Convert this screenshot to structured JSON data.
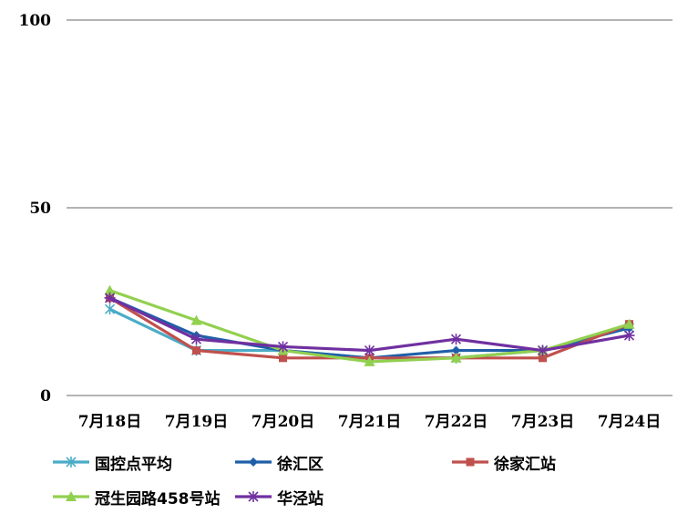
{
  "chart_data": {
    "type": "line",
    "categories": [
      "7月18日",
      "7月19日",
      "7月20日",
      "7月21日",
      "7月22日",
      "7月23日",
      "7月24日"
    ],
    "ylim": [
      0,
      100
    ],
    "yticks": [
      0,
      50,
      100
    ],
    "grid": true,
    "legend_position": "bottom",
    "series": [
      {
        "name": "国控点平均",
        "color": "#4bacc6",
        "marker": "asterisk",
        "values": [
          23,
          12,
          12,
          10,
          10,
          12,
          18
        ]
      },
      {
        "name": "徐汇区",
        "color": "#1f5fa8",
        "marker": "diamond",
        "values": [
          26,
          16,
          12,
          10,
          12,
          12,
          18
        ]
      },
      {
        "name": "徐家汇站",
        "color": "#c0504d",
        "marker": "square",
        "values": [
          26,
          12,
          10,
          10,
          10,
          10,
          19
        ]
      },
      {
        "name": "冠生园路458号站",
        "color": "#92d050",
        "marker": "triangle",
        "values": [
          28,
          20,
          12,
          9,
          10,
          12,
          19
        ]
      },
      {
        "name": "华泾站",
        "color": "#7030a0",
        "marker": "star",
        "values": [
          26,
          15,
          13,
          12,
          15,
          12,
          16
        ]
      }
    ]
  }
}
